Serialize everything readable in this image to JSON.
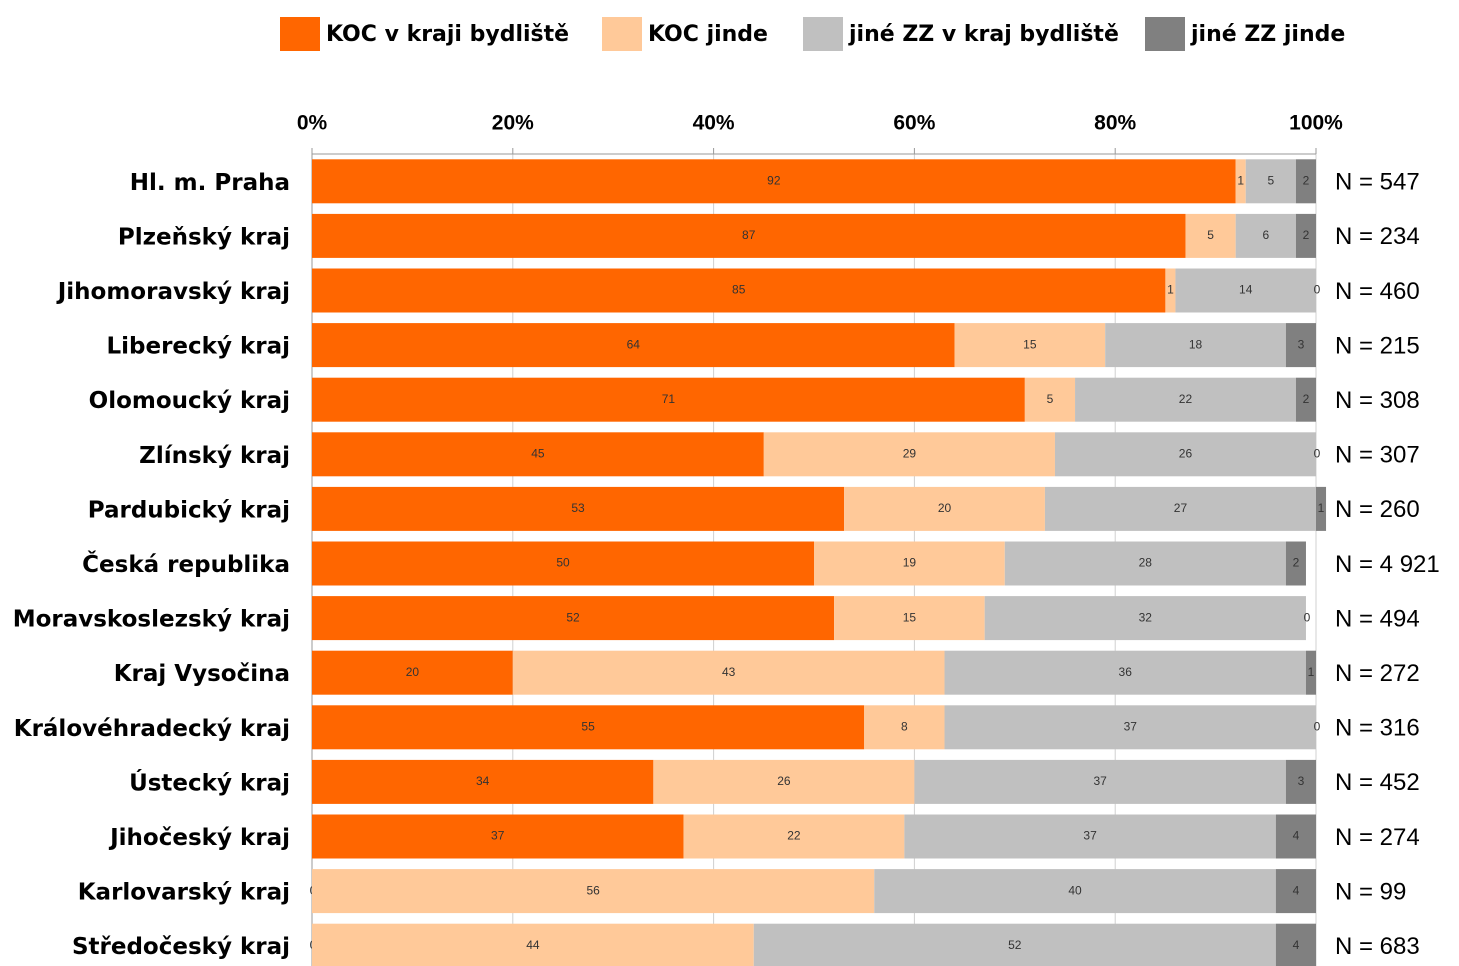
{
  "chart_data": {
    "type": "stacked-bar-horizontal",
    "categories": [
      "Hl. m. Praha",
      "Plzeňský kraj",
      "Jihomoravský kraj",
      "Liberecký kraj",
      "Olomoucký kraj",
      "Zlínský kraj",
      "Pardubický kraj",
      "Česká republika",
      "Moravskoslezský kraj",
      "Kraj Vysočina",
      "Královéhradecký kraj",
      "Ústecký kraj",
      "Jihočeský kraj",
      "Karlovarský kraj",
      "Středočeský kraj"
    ],
    "series": [
      {
        "name": "KOC v kraji bydliště",
        "color": "#ff6600",
        "values": [
          92,
          87,
          85,
          64,
          71,
          45,
          53,
          50,
          52,
          20,
          55,
          34,
          37,
          0,
          0
        ]
      },
      {
        "name": "KOC jinde",
        "color": "#ffc999",
        "values": [
          1,
          5,
          1,
          15,
          5,
          29,
          20,
          19,
          15,
          43,
          8,
          26,
          22,
          56,
          44
        ]
      },
      {
        "name": "jiné ZZ v kraj bydliště",
        "color": "#c0c0c0",
        "values": [
          5,
          6,
          14,
          18,
          22,
          26,
          27,
          28,
          32,
          36,
          37,
          37,
          37,
          40,
          52
        ]
      },
      {
        "name": "jiné ZZ jinde",
        "color": "#808080",
        "values": [
          2,
          2,
          0,
          3,
          2,
          0,
          1,
          2,
          0,
          1,
          0,
          3,
          4,
          4,
          4
        ]
      }
    ],
    "n_labels": [
      "N = 547",
      "N = 234",
      "N = 460",
      "N = 215",
      "N = 308",
      "N = 307",
      "N = 260",
      "N = 4 921",
      "N = 494",
      "N = 272",
      "N = 316",
      "N = 452",
      "N = 274",
      "N = 99",
      "N = 683"
    ],
    "xlim": [
      0,
      100
    ],
    "xticks": [
      {
        "value": 0,
        "label": "0%"
      },
      {
        "value": 20,
        "label": "20%"
      },
      {
        "value": 40,
        "label": "40%"
      },
      {
        "value": 60,
        "label": "60%"
      },
      {
        "value": 80,
        "label": "80%"
      },
      {
        "value": 100,
        "label": "100%"
      }
    ],
    "grid": true,
    "legend": "top"
  }
}
